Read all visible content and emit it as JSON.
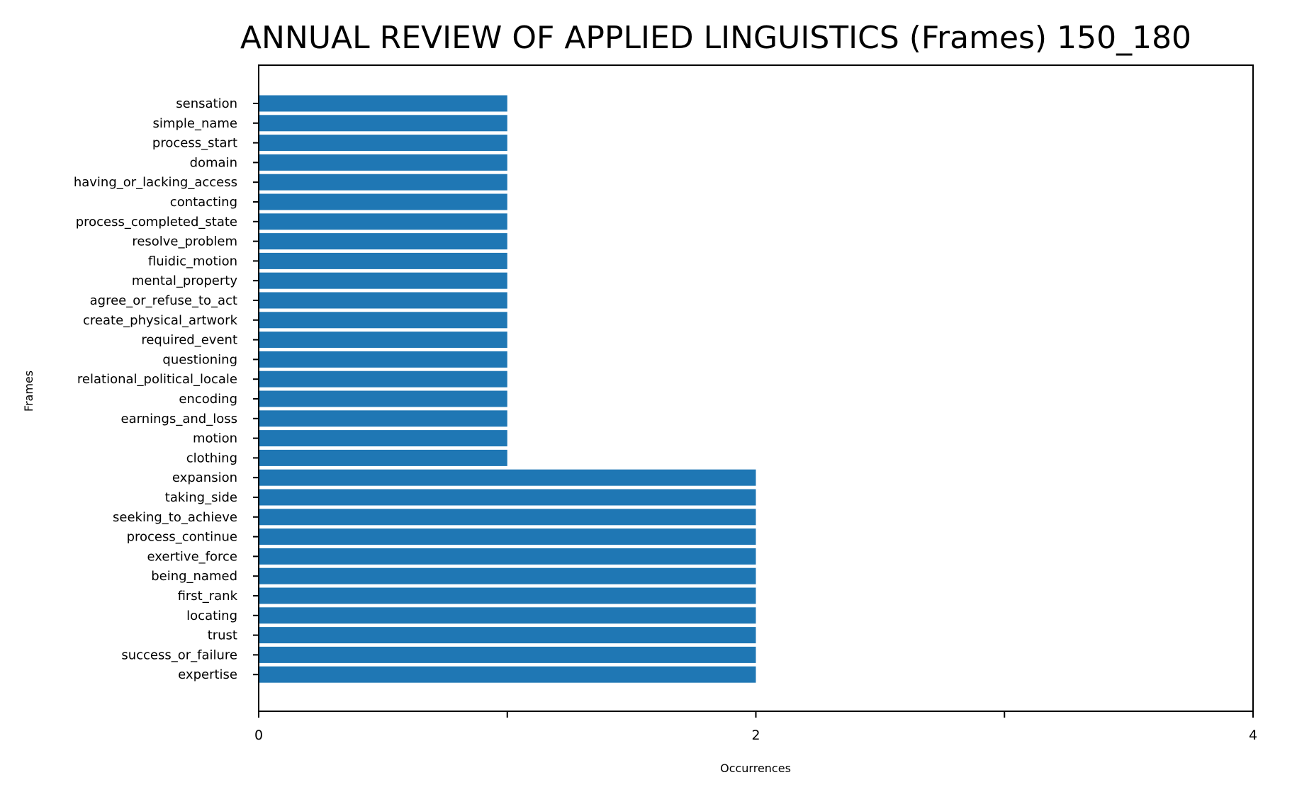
{
  "chart_data": {
    "type": "bar",
    "orientation": "horizontal",
    "title": "ANNUAL REVIEW OF APPLIED LINGUISTICS (Frames) 150_180",
    "xlabel": "Occurrences",
    "ylabel": "Frames",
    "xlim": [
      0,
      4
    ],
    "xticks": [
      0,
      1,
      2,
      3,
      4
    ],
    "xtick_labels": [
      "0",
      "",
      "2",
      "",
      "4"
    ],
    "grid": false,
    "color": "#1f77b4",
    "categories": [
      "sensation",
      "simple_name",
      "process_start",
      "domain",
      "having_or_lacking_access",
      "contacting",
      "process_completed_state",
      "resolve_problem",
      "fluidic_motion",
      "mental_property",
      "agree_or_refuse_to_act",
      "create_physical_artwork",
      "required_event",
      "questioning",
      "relational_political_locale",
      "encoding",
      "earnings_and_loss",
      "motion",
      "clothing",
      "expansion",
      "taking_side",
      "seeking_to_achieve",
      "process_continue",
      "exertive_force",
      "being_named",
      "first_rank",
      "locating",
      "trust",
      "success_or_failure",
      "expertise"
    ],
    "values": [
      1,
      1,
      1,
      1,
      1,
      1,
      1,
      1,
      1,
      1,
      1,
      1,
      1,
      1,
      1,
      1,
      1,
      1,
      1,
      2,
      2,
      2,
      2,
      2,
      2,
      2,
      2,
      2,
      2,
      2
    ]
  }
}
